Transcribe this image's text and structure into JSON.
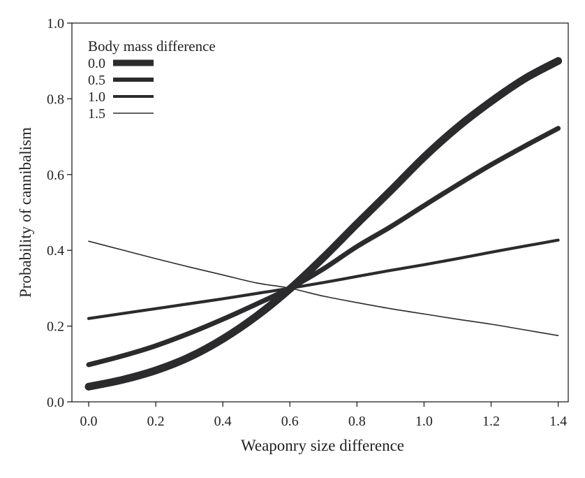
{
  "chart_data": {
    "type": "line",
    "title": "",
    "xlabel": "Weaponry size difference",
    "ylabel": "Probability of cannibalism",
    "xlim": [
      -0.05,
      1.43
    ],
    "ylim": [
      0.0,
      1.0
    ],
    "xticks": [
      "0.0",
      "0.2",
      "0.4",
      "0.6",
      "0.8",
      "1.0",
      "1.2",
      "1.4"
    ],
    "yticks": [
      "0.0",
      "0.2",
      "0.4",
      "0.6",
      "0.8",
      "1.0"
    ],
    "grid": false,
    "line_color": "#2b2a2c",
    "legend": {
      "title": "Body mass difference",
      "position": "top-left"
    },
    "x": [
      0.0,
      0.1,
      0.2,
      0.3,
      0.4,
      0.5,
      0.6,
      0.7,
      0.8,
      0.9,
      1.0,
      1.1,
      1.2,
      1.3,
      1.4
    ],
    "series": [
      {
        "name": "0.0",
        "line_weight": "thickest",
        "values": [
          0.04,
          0.058,
          0.083,
          0.118,
          0.166,
          0.226,
          0.298,
          0.381,
          0.47,
          0.557,
          0.646,
          0.725,
          0.793,
          0.853,
          0.9
        ]
      },
      {
        "name": "0.5",
        "line_weight": "thick",
        "values": [
          0.098,
          0.121,
          0.148,
          0.181,
          0.218,
          0.258,
          0.3,
          0.351,
          0.41,
          0.462,
          0.518,
          0.573,
          0.626,
          0.675,
          0.722
        ]
      },
      {
        "name": "1.0",
        "line_weight": "medium",
        "values": [
          0.22,
          0.233,
          0.246,
          0.259,
          0.272,
          0.286,
          0.3,
          0.315,
          0.331,
          0.347,
          0.362,
          0.378,
          0.395,
          0.411,
          0.427
        ]
      },
      {
        "name": "1.5",
        "line_weight": "thin",
        "values": [
          0.424,
          0.401,
          0.378,
          0.356,
          0.335,
          0.314,
          0.3,
          0.279,
          0.262,
          0.246,
          0.232,
          0.218,
          0.205,
          0.19,
          0.175
        ]
      }
    ]
  }
}
